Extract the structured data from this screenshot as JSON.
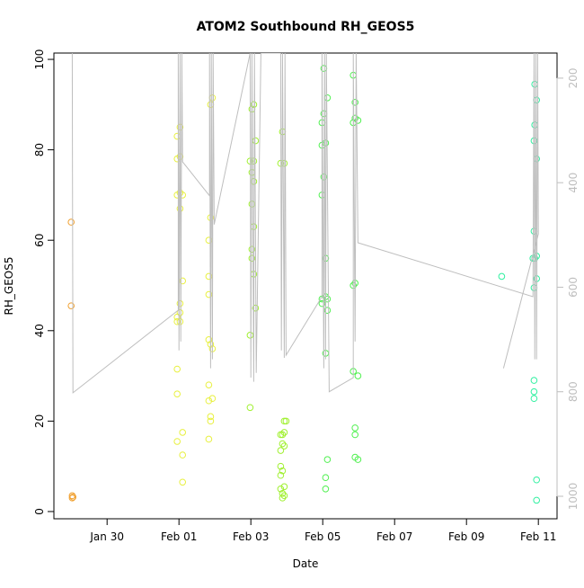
{
  "chart_data": {
    "type": "scatter",
    "title": "ATOM2 Southbound RH_GEOS5",
    "x_label": "Date",
    "y_label": "RH_GEOS5",
    "xlim": [
      28.52,
      42.52
    ],
    "xticks": [
      {
        "value": 30,
        "label": "Jan 30"
      },
      {
        "value": 32,
        "label": "Feb 01"
      },
      {
        "value": 34,
        "label": "Feb 03"
      },
      {
        "value": 36,
        "label": "Feb 05"
      },
      {
        "value": 38,
        "label": "Feb 07"
      },
      {
        "value": 40,
        "label": "Feb 09"
      },
      {
        "value": 42,
        "label": "Feb 11"
      }
    ],
    "ylim": [
      -1.6,
      101.4
    ],
    "yticks": [
      0,
      20,
      40,
      60,
      80,
      100
    ],
    "y2lim": [
      1043,
      152
    ],
    "y2ticks": [
      200,
      400,
      600,
      800,
      1000
    ],
    "series": [
      {
        "color": "#f0a030",
        "x": [
          29.0,
          29.0,
          29.03,
          29.03,
          29.05
        ],
        "values": [
          64,
          45.5,
          3.5,
          3,
          3.2
        ]
      },
      {
        "color": "#e8f040",
        "x": [
          31.95,
          31.95,
          31.95,
          31.95,
          31.95,
          31.95,
          31.95,
          31.95,
          32.03,
          32.03,
          32.03,
          32.03,
          32.03,
          32.03,
          32.03,
          32.1,
          32.1,
          32.1,
          32.1,
          32.1,
          32.83,
          32.83,
          32.83,
          32.83,
          32.83,
          32.83,
          32.83,
          32.88,
          32.88,
          32.88,
          32.88,
          32.88,
          32.93,
          32.93,
          32.93
        ],
        "values": [
          83,
          78,
          70,
          43,
          42,
          31.5,
          26,
          15.5,
          85,
          78.5,
          70.5,
          67,
          46,
          44,
          42,
          70,
          51,
          17.5,
          12.5,
          6.5,
          60,
          52,
          48,
          38,
          28,
          24.5,
          16,
          90,
          65,
          37,
          20,
          21,
          91.5,
          36,
          25
        ]
      },
      {
        "color": "#a0f030",
        "x": [
          33.98,
          33.98,
          33.98,
          34.03,
          34.03,
          34.03,
          34.03,
          34.03,
          34.08,
          34.08,
          34.08,
          34.08,
          34.08,
          34.13,
          34.13,
          34.83,
          34.83,
          34.83,
          34.83,
          34.83,
          34.83,
          34.88,
          34.88,
          34.88,
          34.88,
          34.88,
          34.88,
          34.93,
          34.93,
          34.93,
          34.93,
          34.93,
          34.93,
          34.98
        ],
        "values": [
          77.5,
          39,
          23,
          89,
          75,
          68,
          58,
          56,
          90,
          77.5,
          73,
          63,
          52.5,
          82,
          45,
          77,
          17,
          13.5,
          10,
          8,
          5,
          84,
          17,
          15,
          9,
          4,
          3,
          77,
          20,
          17.5,
          14.5,
          3.5,
          5.5,
          20
        ]
      },
      {
        "color": "#50f050",
        "x": [
          35.98,
          35.98,
          35.98,
          35.98,
          35.98,
          36.03,
          36.03,
          36.03,
          36.08,
          36.08,
          36.08,
          36.08,
          36.08,
          36.08,
          36.13,
          36.13,
          36.13,
          36.13,
          36.85,
          36.85,
          36.85,
          36.85,
          36.9,
          36.9,
          36.9,
          36.9,
          36.9,
          36.9,
          36.98,
          36.98,
          36.98
        ],
        "values": [
          86,
          81,
          70,
          47,
          46,
          98,
          88,
          74,
          81.5,
          56,
          47.5,
          35,
          7.5,
          5,
          91.5,
          47,
          44.5,
          11.5,
          96.5,
          86,
          50,
          31,
          90.5,
          87,
          50.5,
          12,
          17,
          18.5,
          86.5,
          30,
          11.5
        ]
      },
      {
        "color": "#30f0a0",
        "x": [
          40.98,
          41.85,
          41.88,
          41.88,
          41.88,
          41.88,
          41.88,
          41.88,
          41.9,
          41.9,
          41.9,
          41.95,
          41.95,
          41.95,
          41.95,
          41.95,
          41.95
        ],
        "values": [
          52,
          56,
          82,
          62,
          49.5,
          29,
          26.5,
          25,
          94.5,
          85.5,
          56,
          91,
          78,
          56.5,
          51.5,
          7,
          2.5
        ]
      },
      {
        "type": "line",
        "axis": "y2",
        "color": "#bebebe",
        "x": [
          29.03,
          29.05,
          31.98,
          31.98,
          32.0,
          32.03,
          32.05,
          32.08,
          32.1,
          32.85,
          32.85,
          32.88,
          32.9,
          32.93,
          32.95,
          32.98,
          33.98,
          34.0,
          34.03,
          34.08,
          34.1,
          34.15,
          34.28,
          34.83,
          34.85,
          34.88,
          34.93,
          34.95,
          34.98,
          35.98,
          35.98,
          36.03,
          36.05,
          36.08,
          36.1,
          36.18,
          36.85,
          36.85,
          36.9,
          36.93,
          36.98,
          41.85,
          41.88,
          41.9,
          41.93,
          41.95,
          41.98,
          42.0,
          41.03
        ],
        "values": [
          152,
          802,
          644,
          152,
          721,
          152,
          704,
          152,
          360,
          425,
          152,
          755,
          152,
          738,
          152,
          480,
          152,
          773,
          152,
          781,
          152,
          764,
          152,
          152,
          721,
          152,
          735,
          152,
          730,
          618,
          152,
          755,
          152,
          738,
          152,
          800,
          773,
          152,
          704,
          152,
          515,
          618,
          152,
          738,
          152,
          738,
          152,
          498,
          755
        ]
      }
    ]
  }
}
